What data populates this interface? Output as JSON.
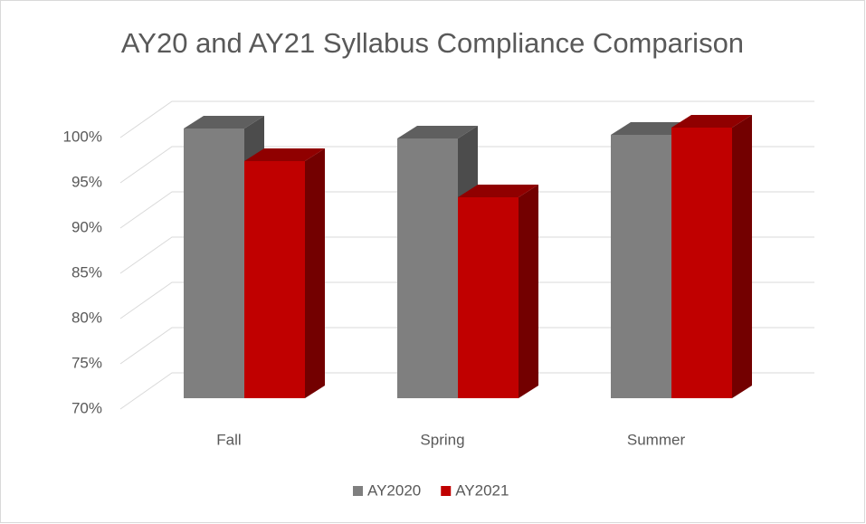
{
  "chart_data": {
    "type": "bar3d",
    "title": "AY20 and AY21 Syllabus Compliance Comparison",
    "categories": [
      "Fall",
      "Spring",
      "Summer"
    ],
    "series": [
      {
        "name": "AY2020",
        "color": "#7f7f7f",
        "values": [
          99.8,
          98.7,
          99.1
        ]
      },
      {
        "name": "AY2021",
        "color": "#c00000",
        "values": [
          96.2,
          92.2,
          99.9
        ]
      }
    ],
    "ylim": [
      70,
      100
    ],
    "yticks": [
      {
        "value": 70,
        "label": "70%"
      },
      {
        "value": 75,
        "label": "75%"
      },
      {
        "value": 80,
        "label": "80%"
      },
      {
        "value": 85,
        "label": "85%"
      },
      {
        "value": 90,
        "label": "90%"
      },
      {
        "value": 95,
        "label": "95%"
      },
      {
        "value": 100,
        "label": "100%"
      }
    ],
    "grid": true,
    "legend": "bottom"
  }
}
